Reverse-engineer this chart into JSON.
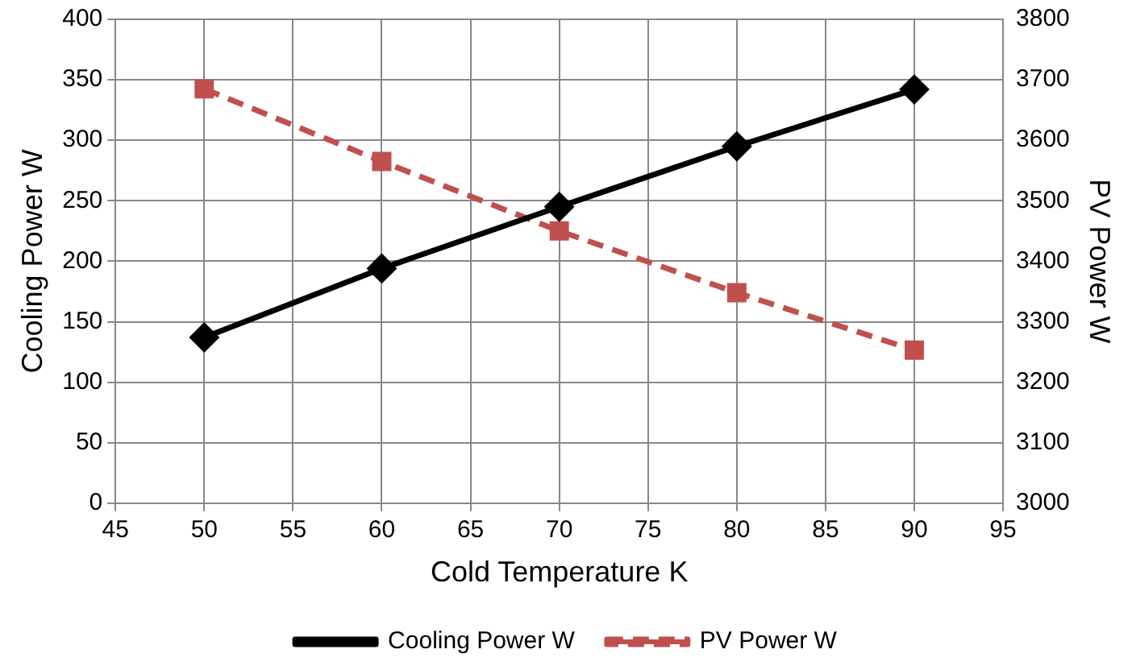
{
  "chart_data": {
    "type": "line",
    "xlabel": "Cold Temperature K",
    "ylabel": "Cooling Power W",
    "y2label": "PV Power W",
    "x": [
      50,
      60,
      70,
      80,
      90
    ],
    "series": [
      {
        "name": "Cooling Power W",
        "color": "#000000",
        "values": [
          137,
          194,
          245,
          295,
          342
        ],
        "marker": "diamond",
        "line_style": "solid"
      },
      {
        "name": "PV Power W",
        "color": "#c0504d",
        "values": [
          3685,
          3565,
          3450,
          3348,
          3253
        ],
        "axis": "y2",
        "marker": "square",
        "line_style": "dashed"
      }
    ],
    "xlim": [
      45,
      95
    ],
    "xticks": [
      45,
      50,
      55,
      60,
      65,
      70,
      75,
      80,
      85,
      90,
      95
    ],
    "ylim": [
      0,
      400
    ],
    "yticks": [
      0,
      50,
      100,
      150,
      200,
      250,
      300,
      350,
      400
    ],
    "y2lim": [
      3000,
      3800
    ],
    "y2ticks": [
      3000,
      3100,
      3200,
      3300,
      3400,
      3500,
      3600,
      3700,
      3800
    ],
    "grid": true,
    "legend": "bottom"
  }
}
